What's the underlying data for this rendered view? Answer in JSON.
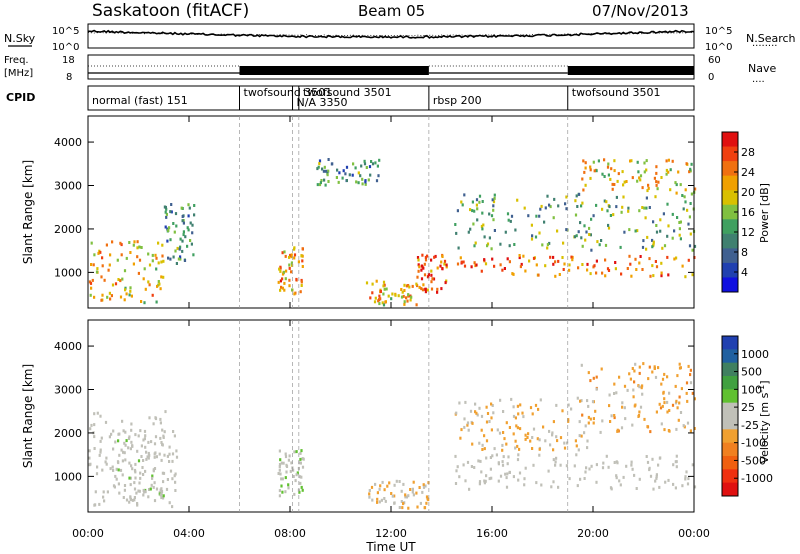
{
  "header": {
    "station": "Saskatoon (fitACF)",
    "beam": "Beam 05",
    "date": "07/Nov/2013"
  },
  "noise_panel": {
    "left_label": "N.Sky",
    "right_label": "N.Search",
    "right_legend_dots": "........",
    "left_ticks": [
      "10^5",
      "10^0"
    ],
    "right_ticks": [
      "10^5",
      "10^0"
    ]
  },
  "freq_panel": {
    "left_label_1": "Freq.",
    "left_label_2": "[MHz]",
    "right_label": "Nave",
    "right_legend_dots": "....",
    "left_ticks": [
      "18",
      "8"
    ],
    "right_ticks": [
      "60",
      "0"
    ]
  },
  "cpid_panel": {
    "label": "CPID",
    "segments": [
      {
        "name": "normal (fast) 151",
        "start_h": 0.0
      },
      {
        "name": "twofsound 3501",
        "start_h": 6.0
      },
      {
        "name": "twofsound 3501",
        "start_h": 8.35
      },
      {
        "name": "N/A 3350",
        "start_h": 8.1
      },
      {
        "name": "rbsp 200",
        "start_h": 13.5
      },
      {
        "name": "twofsound 3501",
        "start_h": 19.0
      }
    ],
    "overlap_label": "3350"
  },
  "power_panel": {
    "ylabel": "Slant Range [km]",
    "cbar_label": "Power [dB]",
    "cbar_ticks": [
      "28",
      "24",
      "20",
      "16",
      "12",
      "8",
      "4"
    ],
    "cbar_colors": [
      "#e01010",
      "#f04010",
      "#f07010",
      "#f0a000",
      "#d8c000",
      "#80c040",
      "#40a060",
      "#408070",
      "#406090",
      "#2040b0",
      "#1010e0"
    ]
  },
  "velocity_panel": {
    "ylabel": "Slant Range [km]",
    "cbar_label": "Velocity [m s",
    "cbar_label_sup": "-1",
    "cbar_label_end": "]",
    "cbar_ticks": [
      "1000",
      "500",
      "100",
      "25",
      "-25",
      "-100",
      "-500",
      "-1000"
    ],
    "cbar_colors": [
      "#2040b0",
      "#2060a0",
      "#408060",
      "#40a040",
      "#60c030",
      "#c0c0b8",
      "#c0c0b8",
      "#f0a030",
      "#f08020",
      "#f06010",
      "#f03010",
      "#e01010"
    ]
  },
  "axes": {
    "xlabel": "Time UT",
    "x_ticks": [
      "00:00",
      "04:00",
      "08:00",
      "12:00",
      "16:00",
      "20:00",
      "00:00"
    ],
    "y_ticks": [
      "1000",
      "2000",
      "3000",
      "4000"
    ]
  },
  "chart_data": [
    {
      "type": "heatmap",
      "title": "Power",
      "xlabel": "Time UT",
      "ylabel": "Slant Range [km]",
      "xlim_hours": [
        0,
        24
      ],
      "ylim_km": [
        180,
        4600
      ],
      "colorbar": {
        "label": "Power [dB]",
        "range": [
          0,
          30
        ],
        "ticks": [
          4,
          8,
          12,
          16,
          20,
          24,
          28
        ]
      },
      "regions": [
        {
          "t": [
            0.0,
            3.0
          ],
          "r": [
            300,
            1800
          ],
          "value_db": 20
        },
        {
          "t": [
            3.0,
            4.2
          ],
          "r": [
            1200,
            2600
          ],
          "value_db": 10
        },
        {
          "t": [
            7.5,
            8.5
          ],
          "r": [
            500,
            1600
          ],
          "value_db": 22
        },
        {
          "t": [
            9.0,
            11.5
          ],
          "r": [
            3000,
            3600
          ],
          "value_db": 10
        },
        {
          "t": [
            11.0,
            13.0
          ],
          "r": [
            250,
            800
          ],
          "value_db": 20
        },
        {
          "t": [
            13.0,
            14.2
          ],
          "r": [
            500,
            1400
          ],
          "value_db": 26
        },
        {
          "t": [
            14.5,
            24.0
          ],
          "r": [
            900,
            1400
          ],
          "value_db": 24
        },
        {
          "t": [
            14.5,
            24.0
          ],
          "r": [
            1500,
            2800
          ],
          "value_db": 12
        },
        {
          "t": [
            19.5,
            24.0
          ],
          "r": [
            2800,
            3600
          ],
          "value_db": 18
        }
      ]
    },
    {
      "type": "heatmap",
      "title": "Velocity",
      "xlabel": "Time UT",
      "ylabel": "Slant Range [km]",
      "xlim_hours": [
        0,
        24
      ],
      "ylim_km": [
        180,
        4600
      ],
      "colorbar": {
        "label": "Velocity [m s-1]",
        "range": [
          -1000,
          1000
        ],
        "ticks": [
          1000,
          500,
          100,
          25,
          -25,
          -100,
          -500,
          -1000
        ]
      },
      "regions": [
        {
          "t": [
            0.0,
            3.5
          ],
          "r": [
            300,
            2500
          ],
          "value_ms": 0
        },
        {
          "t": [
            1.0,
            3.0
          ],
          "r": [
            400,
            2000
          ],
          "value_ms": 80
        },
        {
          "t": [
            7.5,
            8.5
          ],
          "r": [
            500,
            1600
          ],
          "value_ms": 100
        },
        {
          "t": [
            11.0,
            13.5
          ],
          "r": [
            250,
            900
          ],
          "value_ms": -150
        },
        {
          "t": [
            14.5,
            24.0
          ],
          "r": [
            700,
            1500
          ],
          "value_ms": 0
        },
        {
          "t": [
            14.5,
            20.0
          ],
          "r": [
            1600,
            2800
          ],
          "value_ms": -200
        },
        {
          "t": [
            19.5,
            24.0
          ],
          "r": [
            2000,
            3600
          ],
          "value_ms": -250
        }
      ]
    }
  ]
}
